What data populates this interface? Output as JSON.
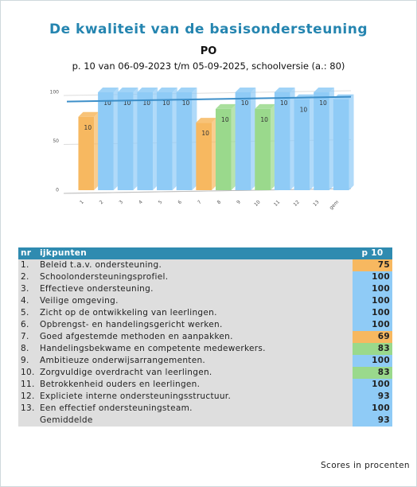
{
  "chart_data": {
    "type": "bar3d",
    "title": "De kwaliteit van de basisondersteuning",
    "subtitle": "PO",
    "period": "p. 10 van 06-09-2023 t/m 05-09-2025, schoolversie (a.: 80)",
    "categories": [
      "1",
      "2",
      "3",
      "4",
      "5",
      "6",
      "7",
      "8",
      "9",
      "10",
      "11",
      "12",
      "13",
      "gem"
    ],
    "values": [
      75,
      100,
      100,
      100,
      100,
      100,
      69,
      83,
      100,
      83,
      100,
      93,
      100,
      93
    ],
    "colors": [
      "#f7b860",
      "#8fcbf6",
      "#8fcbf6",
      "#8fcbf6",
      "#8fcbf6",
      "#8fcbf6",
      "#f7b860",
      "#9ad98c",
      "#8fcbf6",
      "#9ad98c",
      "#8fcbf6",
      "#8fcbf6",
      "#8fcbf6",
      "#8fcbf6"
    ],
    "bar_labels": [
      10,
      10,
      10,
      10,
      10,
      10,
      10,
      10,
      10,
      10,
      10,
      10,
      10,
      null
    ],
    "ylim": [
      0,
      100
    ],
    "yticks": [
      0,
      50,
      100
    ],
    "grid": true
  },
  "table": {
    "header": [
      "nr",
      "ijkpunten",
      "p 10"
    ],
    "rows": [
      [
        "1.",
        "Beleid t.a.v. ondersteuning."
      ],
      [
        "2.",
        "Schoolondersteuningsprofiel."
      ],
      [
        "3.",
        "Effectieve ondersteuning."
      ],
      [
        "4.",
        "Veilige omgeving."
      ],
      [
        "5.",
        "Zicht op de ontwikkeling van leerlingen."
      ],
      [
        "6.",
        "Opbrengst- en handelingsgericht werken."
      ],
      [
        "7.",
        "Goed afgestemde methoden en aanpakken."
      ],
      [
        "8.",
        "Handelingsbekwame en competente medewerkers."
      ],
      [
        "9.",
        "Ambitieuze onderwijsarrangementen."
      ],
      [
        "10.",
        "Zorgvuldige overdracht van leerlingen."
      ],
      [
        "11.",
        "Betrokkenheid ouders en leerlingen."
      ],
      [
        "12.",
        "Expliciete interne ondersteuningsstructuur."
      ],
      [
        "13.",
        "Een effectief ondersteuningsteam."
      ],
      [
        "",
        "Gemiddelde"
      ]
    ]
  },
  "footer": "Scores in procenten"
}
